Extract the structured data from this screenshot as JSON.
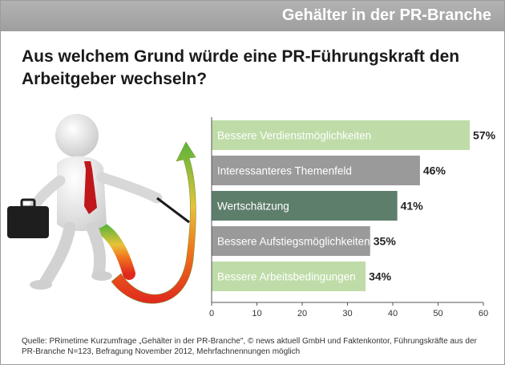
{
  "header": {
    "title": "Gehälter in der PR-Branche"
  },
  "question": "Aus welchem Grund würde eine PR-Führungskraft den Arbeitgeber wechseln?",
  "source": "Quelle: PRimetime Kurzumfrage „Gehälter in der PR-Branche\", © news aktuell GmbH und Faktenkontor, Führungskräfte aus der PR-Branche N=123, Befragung November 2012, Mehrfachnennungen möglich",
  "chart_data": {
    "type": "bar",
    "orientation": "horizontal",
    "title": "Aus welchem Grund würde eine PR-Führungskraft den Arbeitgeber wechseln?",
    "categories": [
      "Bessere Verdienstmöglichkeiten",
      "Interessanteres Themenfeld",
      "Wertschätzung",
      "Bessere Aufstiegsmöglichkeiten",
      "Bessere Arbeitsbedingungen"
    ],
    "values": [
      57,
      46,
      41,
      35,
      34
    ],
    "value_labels": [
      "57%",
      "46%",
      "41%",
      "35%",
      "34%"
    ],
    "bar_colors": [
      "#bfdca8",
      "#9a9a9a",
      "#5e7e6c",
      "#9a9a9a",
      "#bfdca8"
    ],
    "xlim": [
      0,
      60
    ],
    "xticks": [
      0,
      10,
      20,
      30,
      40,
      50,
      60
    ],
    "xlabel": "",
    "ylabel": "",
    "grid": false
  }
}
